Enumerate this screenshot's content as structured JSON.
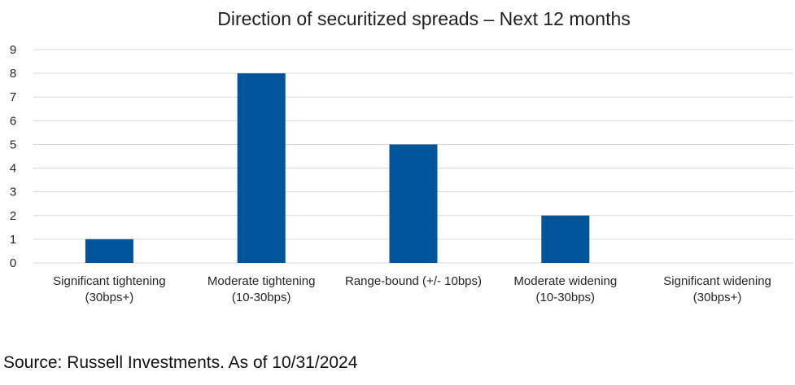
{
  "chart_data": {
    "type": "bar",
    "title": "Direction of securitized spreads – Next 12 months",
    "categories": [
      [
        "Significant tightening",
        "(30bps+)"
      ],
      [
        "Moderate tightening",
        "(10-30bps)"
      ],
      [
        "Range-bound (+/- 10bps)"
      ],
      [
        "Moderate widening",
        "(10-30bps)"
      ],
      [
        "Significant widening",
        "(30bps+)"
      ]
    ],
    "values": [
      1,
      8,
      5,
      2,
      0
    ],
    "ylim": [
      0,
      9
    ],
    "yticks": [
      0,
      1,
      2,
      3,
      4,
      5,
      6,
      7,
      8,
      9
    ],
    "grid": true,
    "bar_color": "#00549a",
    "grid_color": "#d9d9d9",
    "xlabel": "",
    "ylabel": ""
  },
  "footer": {
    "source": "Source: Russell Investments. As of 10/31/2024"
  }
}
